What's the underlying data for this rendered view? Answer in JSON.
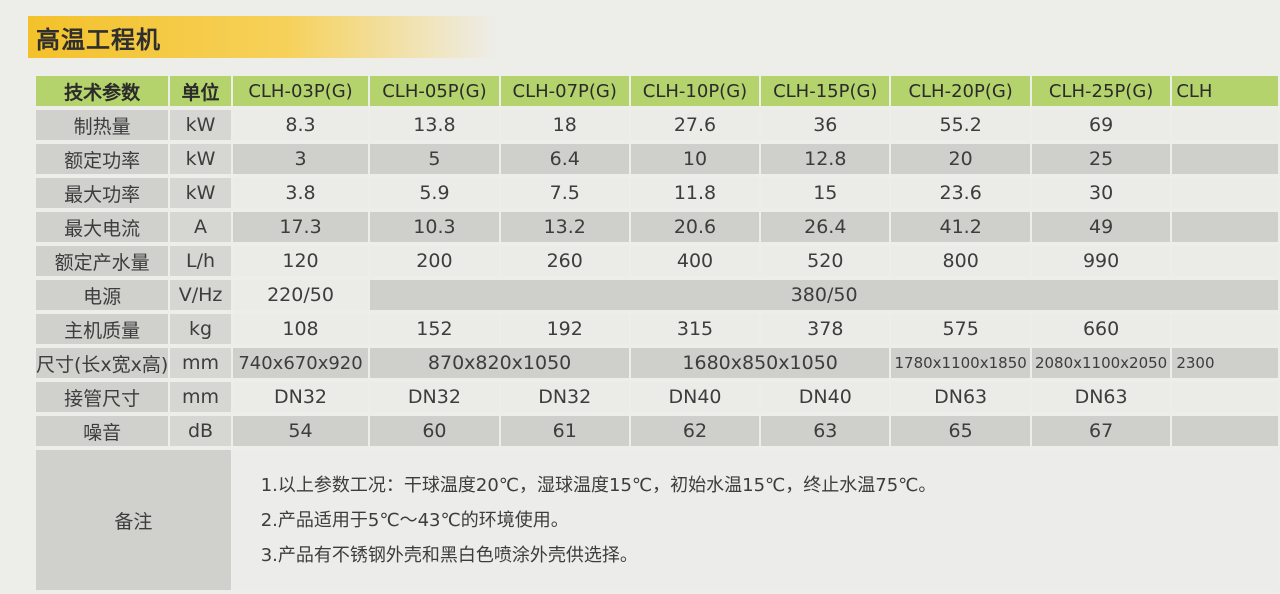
{
  "title": "高温工程机",
  "header": {
    "param": "技术参数",
    "unit": "单位",
    "models": [
      "CLH-03P(G)",
      "CLH-05P(G)",
      "CLH-07P(G)",
      "CLH-10P(G)",
      "CLH-15P(G)",
      "CLH-20P(G)",
      "CLH-25P(G)",
      "CLH"
    ]
  },
  "rows": [
    {
      "param": "制热量",
      "unit": "kW",
      "values": [
        "8.3",
        "13.8",
        "18",
        "27.6",
        "36",
        "55.2",
        "69",
        ""
      ]
    },
    {
      "param": "额定功率",
      "unit": "kW",
      "values": [
        "3",
        "5",
        "6.4",
        "10",
        "12.8",
        "20",
        "25",
        ""
      ]
    },
    {
      "param": "最大功率",
      "unit": "kW",
      "values": [
        "3.8",
        "5.9",
        "7.5",
        "11.8",
        "15",
        "23.6",
        "30",
        ""
      ]
    },
    {
      "param": "最大电流",
      "unit": "A",
      "values": [
        "17.3",
        "10.3",
        "13.2",
        "20.6",
        "26.4",
        "41.2",
        "49",
        ""
      ]
    },
    {
      "param": "额定产水量",
      "unit": "L/h",
      "values": [
        "120",
        "200",
        "260",
        "400",
        "520",
        "800",
        "990",
        ""
      ]
    }
  ],
  "power": {
    "param": "电源",
    "unit": "V/Hz",
    "v1": "220/50",
    "v2": "380/50"
  },
  "mass": {
    "param": "主机质量",
    "unit": "kg",
    "values": [
      "108",
      "152",
      "192",
      "315",
      "378",
      "575",
      "660",
      ""
    ]
  },
  "size": {
    "param": "尺寸",
    "param_sub": "(长x宽x高)",
    "unit": "mm",
    "v1": "740x670x920",
    "v2": "870x820x1050",
    "v3": "1680x850x1050",
    "v4": "1780x1100x1850",
    "v5": "2080x1100x2050",
    "v6": "2300"
  },
  "pipe": {
    "param": "接管尺寸",
    "unit": "mm",
    "values": [
      "DN32",
      "DN32",
      "DN32",
      "DN40",
      "DN40",
      "DN63",
      "DN63",
      ""
    ]
  },
  "noise": {
    "param": "噪音",
    "unit": "dB",
    "values": [
      "54",
      "60",
      "61",
      "62",
      "63",
      "65",
      "67",
      ""
    ]
  },
  "notes": {
    "label": "备注",
    "lines": [
      "1.以上参数工况：干球温度20℃，湿球温度15℃，初始水温15℃，终止水温75℃。",
      "2.产品适用于5℃～43℃的环境使用。",
      "3.产品有不锈钢外壳和黑白色喷涂外壳供选择。"
    ]
  }
}
